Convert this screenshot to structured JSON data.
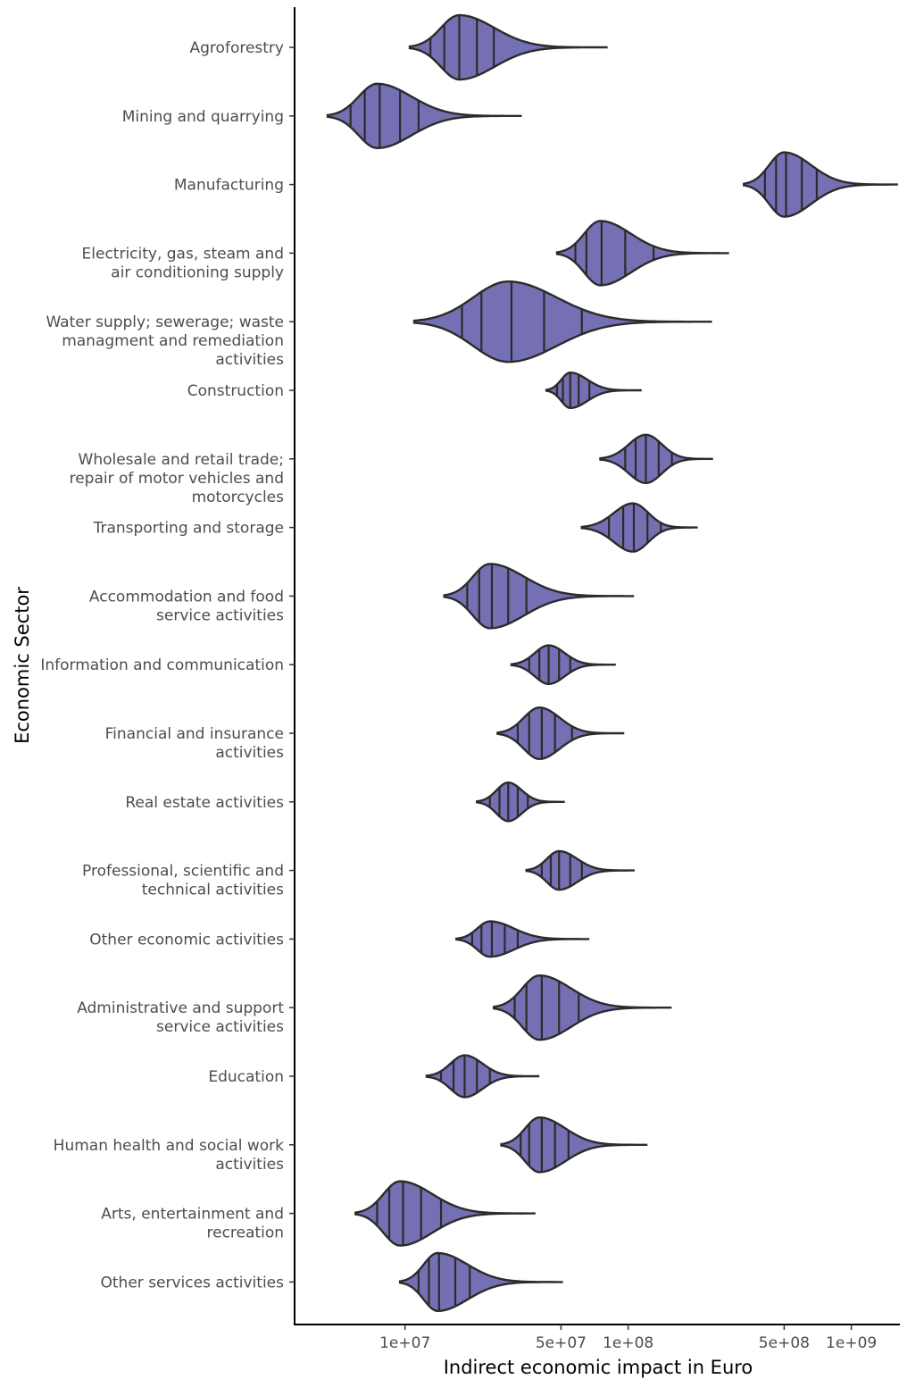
{
  "chart_data": {
    "type": "violin",
    "orientation": "horizontal",
    "xlabel": "Indirect economic impact in Euro",
    "ylabel": "Economic Sector",
    "x_scale": "log10",
    "xlim": [
      3200000,
      1650000000
    ],
    "x_ticks": [
      {
        "value": 10000000,
        "label": "1e+07"
      },
      {
        "value": 50000000,
        "label": "5e+07"
      },
      {
        "value": 100000000,
        "label": "1e+08"
      },
      {
        "value": 500000000,
        "label": "5e+08"
      },
      {
        "value": 1000000000,
        "label": "1e+09"
      }
    ],
    "fill_color": "#7570b3",
    "outline_color": "#2b2b2b",
    "draw_quantiles": [
      0.1,
      0.25,
      0.5,
      0.75,
      0.9
    ],
    "series": [
      {
        "name": "Agroforestry",
        "lines": [
          "Agroforestry"
        ],
        "min": 10500000,
        "mode": 17500000,
        "max": 80000000,
        "quantiles": [
          13000000,
          15000000,
          17500000,
          21000000,
          25000000
        ],
        "width": 1.0
      },
      {
        "name": "Mining and quarrying",
        "lines": [
          "Mining and quarrying"
        ],
        "min": 4500000,
        "mode": 7500000,
        "max": 33000000,
        "quantiles": [
          5700000,
          6600000,
          7700000,
          9500000,
          11500000
        ],
        "width": 1.0
      },
      {
        "name": "Manufacturing",
        "lines": [
          "Manufacturing"
        ],
        "min": 330000000,
        "mode": 500000000,
        "max": 1600000000,
        "quantiles": [
          410000000,
          460000000,
          510000000,
          600000000,
          700000000
        ],
        "width": 1.0
      },
      {
        "name": "Electricity, gas, steam and air conditioning supply",
        "lines": [
          "Electricity, gas, steam and",
          "air conditioning supply"
        ],
        "min": 48000000,
        "mode": 75000000,
        "max": 280000000,
        "quantiles": [
          58000000,
          65000000,
          76000000,
          97000000,
          130000000
        ],
        "width": 1.0
      },
      {
        "name": "Water supply; sewerage; waste managment and remediation activities",
        "lines": [
          "Water supply; sewerage; waste",
          "managment and remediation",
          "activities"
        ],
        "min": 11000000,
        "mode": 29000000,
        "max": 235000000,
        "quantiles": [
          18000000,
          22000000,
          30000000,
          42000000,
          62000000
        ],
        "width": 1.25
      },
      {
        "name": "Construction",
        "lines": [
          "Construction"
        ],
        "min": 43000000,
        "mode": 55000000,
        "max": 115000000,
        "quantiles": [
          48000000,
          51000000,
          55000000,
          60000000,
          67000000
        ],
        "width": 0.55
      },
      {
        "name": "Wholesale and retail trade; repair of motor vehicles and motorcycles",
        "lines": [
          "Wholesale and retail trade;",
          "repair of motor vehicles and",
          "motorcycles"
        ],
        "min": 75000000,
        "mode": 120000000,
        "max": 240000000,
        "quantiles": [
          97000000,
          108000000,
          120000000,
          137000000,
          157000000
        ],
        "width": 0.75
      },
      {
        "name": "Transporting and storage",
        "lines": [
          "Transporting and storage"
        ],
        "min": 62000000,
        "mode": 105000000,
        "max": 205000000,
        "quantiles": [
          82000000,
          95000000,
          106000000,
          122000000,
          140000000
        ],
        "width": 0.75
      },
      {
        "name": "Accommodation and food service activities",
        "lines": [
          "Accommodation and food",
          "service activities"
        ],
        "min": 15000000,
        "mode": 24000000,
        "max": 105000000,
        "quantiles": [
          19000000,
          21500000,
          24500000,
          29000000,
          35000000
        ],
        "width": 1.0
      },
      {
        "name": "Information and communication",
        "lines": [
          "Information and communication"
        ],
        "min": 30000000,
        "mode": 44000000,
        "max": 88000000,
        "quantiles": [
          36000000,
          40000000,
          44000000,
          49000000,
          55000000
        ],
        "width": 0.6
      },
      {
        "name": "Financial and insurance activities",
        "lines": [
          "Financial and insurance",
          "activities"
        ],
        "min": 26000000,
        "mode": 40000000,
        "max": 96000000,
        "quantiles": [
          32000000,
          36000000,
          41000000,
          47000000,
          56000000
        ],
        "width": 0.8
      },
      {
        "name": "Real estate activities",
        "lines": [
          "Real estate activities"
        ],
        "min": 21000000,
        "mode": 29000000,
        "max": 52000000,
        "quantiles": [
          24000000,
          26500000,
          29000000,
          32000000,
          35500000
        ],
        "width": 0.6
      },
      {
        "name": "Professional, scientific and technical activities",
        "lines": [
          "Professional, scientific and",
          "technical activities"
        ],
        "min": 35000000,
        "mode": 49000000,
        "max": 107000000,
        "quantiles": [
          41000000,
          45000000,
          49000000,
          55000000,
          62000000
        ],
        "width": 0.6
      },
      {
        "name": "Other economic activities",
        "lines": [
          "Other economic activities"
        ],
        "min": 17000000,
        "mode": 24000000,
        "max": 67000000,
        "quantiles": [
          20000000,
          22000000,
          24500000,
          28000000,
          32000000
        ],
        "width": 0.55
      },
      {
        "name": "Administrative and support service activities",
        "lines": [
          "Administrative and support",
          "service activities"
        ],
        "min": 25000000,
        "mode": 40000000,
        "max": 155000000,
        "quantiles": [
          31000000,
          35000000,
          41000000,
          49000000,
          60000000
        ],
        "width": 1.0
      },
      {
        "name": "Education",
        "lines": [
          "Education"
        ],
        "min": 12500000,
        "mode": 18500000,
        "max": 40000000,
        "quantiles": [
          14500000,
          16500000,
          18500000,
          21000000,
          24000000
        ],
        "width": 0.65
      },
      {
        "name": "Human health and social work activities",
        "lines": [
          "Human health and social work",
          "activities"
        ],
        "min": 27000000,
        "mode": 40000000,
        "max": 122000000,
        "quantiles": [
          33000000,
          36000000,
          41000000,
          47000000,
          54000000
        ],
        "width": 0.85
      },
      {
        "name": "Arts, entertainment and recreation",
        "lines": [
          "Arts, entertainment and",
          "recreation"
        ],
        "min": 6000000,
        "mode": 9500000,
        "max": 38000000,
        "quantiles": [
          7500000,
          8500000,
          9800000,
          11800000,
          14500000
        ],
        "width": 1.0
      },
      {
        "name": "Other services activities",
        "lines": [
          "Other services activities"
        ],
        "min": 9500000,
        "mode": 14000000,
        "max": 51000000,
        "quantiles": [
          11500000,
          12800000,
          14200000,
          16800000,
          19500000
        ],
        "width": 0.9
      }
    ]
  }
}
